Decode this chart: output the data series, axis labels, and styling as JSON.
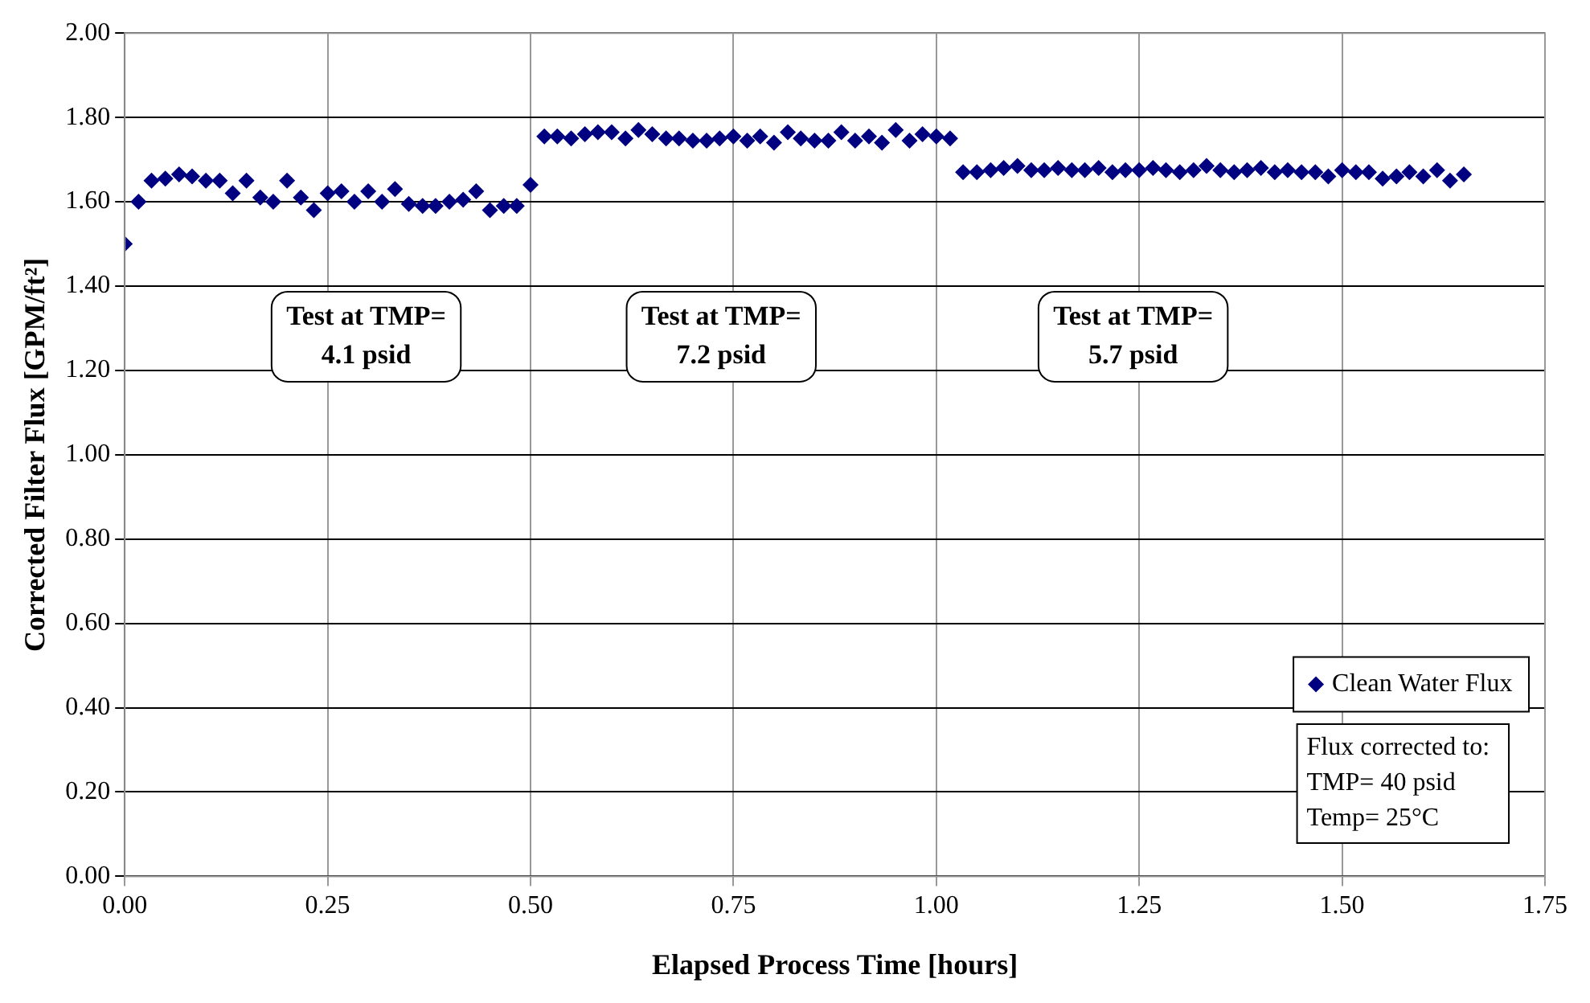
{
  "chart_data": {
    "type": "scatter",
    "xlabel": "Elapsed Process Time [hours]",
    "ylabel": "Corrected Filter Flux [GPM/ft²]",
    "x": [
      0,
      0.017,
      0.033,
      0.05,
      0.067,
      0.083,
      0.1,
      0.117,
      0.133,
      0.15,
      0.167,
      0.183,
      0.2,
      0.217,
      0.233,
      0.25,
      0.267,
      0.283,
      0.3,
      0.317,
      0.333,
      0.35,
      0.367,
      0.383,
      0.4,
      0.417,
      0.433,
      0.45,
      0.467,
      0.483,
      0.5,
      0.517,
      0.533,
      0.55,
      0.567,
      0.583,
      0.6,
      0.617,
      0.633,
      0.65,
      0.667,
      0.683,
      0.7,
      0.717,
      0.733,
      0.75,
      0.767,
      0.783,
      0.8,
      0.817,
      0.833,
      0.85,
      0.867,
      0.883,
      0.9,
      0.917,
      0.933,
      0.95,
      0.967,
      0.983,
      1,
      1.017,
      1.033,
      1.05,
      1.067,
      1.083,
      1.1,
      1.117,
      1.133,
      1.15,
      1.167,
      1.183,
      1.2,
      1.217,
      1.233,
      1.25,
      1.267,
      1.283,
      1.3,
      1.317,
      1.333,
      1.35,
      1.367,
      1.383,
      1.4,
      1.417,
      1.433,
      1.45,
      1.467,
      1.483,
      1.5,
      1.517,
      1.533,
      1.55,
      1.567,
      1.583,
      1.6,
      1.617,
      1.633,
      1.65
    ],
    "series": [
      {
        "name": "Clean Water Flux",
        "color": "#000080",
        "values": [
          1.5,
          1.6,
          1.65,
          1.655,
          1.665,
          1.66,
          1.65,
          1.65,
          1.62,
          1.65,
          1.61,
          1.6,
          1.65,
          1.61,
          1.58,
          1.62,
          1.625,
          1.6,
          1.625,
          1.6,
          1.63,
          1.595,
          1.59,
          1.59,
          1.6,
          1.605,
          1.625,
          1.58,
          1.59,
          1.59,
          1.64,
          1.755,
          1.755,
          1.75,
          1.76,
          1.765,
          1.765,
          1.75,
          1.77,
          1.76,
          1.75,
          1.75,
          1.745,
          1.745,
          1.75,
          1.755,
          1.745,
          1.755,
          1.74,
          1.765,
          1.75,
          1.745,
          1.745,
          1.765,
          1.745,
          1.755,
          1.74,
          1.77,
          1.745,
          1.76,
          1.755,
          1.75,
          1.67,
          1.67,
          1.675,
          1.68,
          1.685,
          1.675,
          1.675,
          1.68,
          1.675,
          1.675,
          1.68,
          1.67,
          1.675,
          1.675,
          1.68,
          1.675,
          1.67,
          1.675,
          1.685,
          1.675,
          1.67,
          1.675,
          1.68,
          1.67,
          1.675,
          1.67,
          1.67,
          1.66,
          1.675,
          1.67,
          1.67,
          1.655,
          1.66,
          1.67,
          1.66,
          1.675,
          1.65,
          1.665
        ]
      }
    ],
    "xlim": [
      0,
      1.75
    ],
    "xticks": [
      {
        "value": 0,
        "label": "0.00"
      },
      {
        "value": 0.25,
        "label": "0.25"
      },
      {
        "value": 0.5,
        "label": "0.50"
      },
      {
        "value": 0.75,
        "label": "0.75"
      },
      {
        "value": 1,
        "label": "1.00"
      },
      {
        "value": 1.25,
        "label": "1.25"
      },
      {
        "value": 1.5,
        "label": "1.50"
      },
      {
        "value": 1.75,
        "label": "1.75"
      }
    ],
    "ylim": [
      0,
      2
    ],
    "yticks": [
      {
        "value": 0,
        "label": "0.00"
      },
      {
        "value": 0.2,
        "label": "0.20"
      },
      {
        "value": 0.4,
        "label": "0.40"
      },
      {
        "value": 0.6,
        "label": "0.60"
      },
      {
        "value": 0.8,
        "label": "0.80"
      },
      {
        "value": 1,
        "label": "1.00"
      },
      {
        "value": 1.2,
        "label": "1.20"
      },
      {
        "value": 1.4,
        "label": "1.40"
      },
      {
        "value": 1.6,
        "label": "1.60"
      },
      {
        "value": 1.8,
        "label": "1.80"
      },
      {
        "value": 2,
        "label": "2.00"
      }
    ],
    "grid": true,
    "legend": "bottom right",
    "marker": "diamond",
    "annotations": [
      "Test at TMP=\n4.1 psid",
      "Test at TMP=\n7.2 psid",
      "Test at TMP=\n5.7 psid",
      "Flux corrected to:\nTMP= 40 psid\nTemp= 25°C"
    ]
  }
}
